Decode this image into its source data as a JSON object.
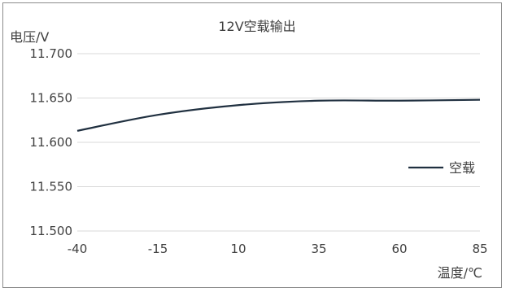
{
  "chart_data": {
    "type": "line",
    "title": "12V空载输出",
    "ylabel": "电压/V",
    "xlabel": "温度/℃",
    "x": [
      -40,
      -15,
      10,
      35,
      60,
      85
    ],
    "x_tick_labels": [
      "-40",
      "-15",
      "10",
      "35",
      "60",
      "85"
    ],
    "y_tick_labels": [
      "11.700",
      "11.650",
      "11.600",
      "11.550",
      "11.500"
    ],
    "ylim": [
      11.5,
      11.7
    ],
    "xlim": [
      -40,
      85
    ],
    "grid": "horizontal",
    "legend": "right",
    "series": [
      {
        "name": "空载",
        "color": "#203040",
        "values": [
          11.613,
          11.631,
          11.642,
          11.647,
          11.647,
          11.648
        ]
      }
    ]
  }
}
